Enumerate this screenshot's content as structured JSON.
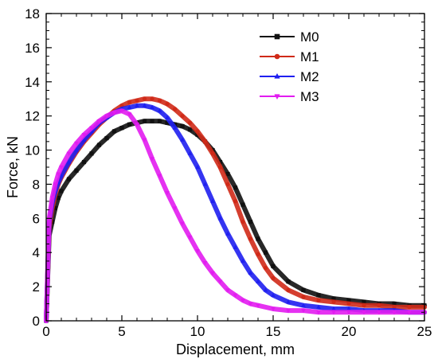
{
  "chart_data": {
    "type": "line",
    "xlabel": "Displacement, mm",
    "ylabel": "Force, kN",
    "xlim": [
      0,
      25
    ],
    "ylim": [
      0,
      18
    ],
    "x_ticks": [
      "0",
      "5",
      "10",
      "15",
      "20",
      "25"
    ],
    "y_ticks": [
      "0",
      "2",
      "4",
      "6",
      "8",
      "10",
      "12",
      "14",
      "16",
      "18"
    ],
    "grid": false,
    "legend_position": "top-right",
    "series": [
      {
        "name": "M0",
        "color": "#111111",
        "marker": "square",
        "x": [
          0,
          0.2,
          0.4,
          0.6,
          0.8,
          1,
          1.5,
          2,
          2.5,
          3,
          3.5,
          4,
          4.5,
          5,
          5.5,
          6,
          6.5,
          7,
          7.5,
          8,
          8.5,
          9,
          9.5,
          10,
          10.5,
          11,
          11.5,
          12,
          12.5,
          13,
          13.5,
          14,
          14.5,
          15,
          16,
          17,
          18,
          19,
          20,
          21,
          22,
          23,
          24,
          25
        ],
        "y": [
          0,
          5.0,
          5.8,
          6.6,
          7.2,
          7.6,
          8.3,
          8.8,
          9.3,
          9.8,
          10.3,
          10.7,
          11.1,
          11.3,
          11.5,
          11.6,
          11.7,
          11.7,
          11.7,
          11.6,
          11.5,
          11.4,
          11.2,
          10.9,
          10.5,
          10.0,
          9.3,
          8.6,
          7.8,
          6.8,
          5.8,
          4.8,
          4.0,
          3.2,
          2.3,
          1.8,
          1.5,
          1.3,
          1.2,
          1.1,
          1.0,
          1.0,
          0.9,
          0.9
        ]
      },
      {
        "name": "M1",
        "color": "#d02a18",
        "marker": "circle",
        "x": [
          0,
          0.2,
          0.4,
          0.6,
          0.8,
          1,
          1.5,
          2,
          2.5,
          3,
          3.5,
          4,
          4.5,
          5,
          5.5,
          6,
          6.5,
          7,
          7.5,
          8,
          8.5,
          9,
          9.5,
          10,
          10.5,
          11,
          11.5,
          12,
          12.5,
          13,
          13.5,
          14,
          14.5,
          15,
          16,
          17,
          18,
          19,
          20,
          21,
          22,
          23,
          24,
          25
        ],
        "y": [
          0,
          5.5,
          6.6,
          7.4,
          8.0,
          8.4,
          9.2,
          9.9,
          10.5,
          11.0,
          11.5,
          11.9,
          12.3,
          12.6,
          12.8,
          12.9,
          13.0,
          13.0,
          12.9,
          12.7,
          12.4,
          12.0,
          11.6,
          11.1,
          10.5,
          9.8,
          9.0,
          8.0,
          7.0,
          5.8,
          4.8,
          3.9,
          3.1,
          2.5,
          1.8,
          1.4,
          1.2,
          1.1,
          1.0,
          0.9,
          0.9,
          0.8,
          0.8,
          0.8
        ]
      },
      {
        "name": "M2",
        "color": "#1f1ff0",
        "marker": "triangle-up",
        "x": [
          0,
          0.2,
          0.4,
          0.6,
          0.8,
          1,
          1.5,
          2,
          2.5,
          3,
          3.5,
          4,
          4.5,
          5,
          5.5,
          6,
          6.5,
          7,
          7.5,
          8,
          8.5,
          9,
          9.5,
          10,
          10.5,
          11,
          11.5,
          12,
          12.5,
          13,
          13.5,
          14,
          14.5,
          15,
          16,
          17,
          18,
          19,
          20,
          21,
          22,
          23,
          24,
          25
        ],
        "y": [
          0,
          5.8,
          6.9,
          7.6,
          8.1,
          8.5,
          9.3,
          10.0,
          10.6,
          11.1,
          11.6,
          11.9,
          12.2,
          12.4,
          12.5,
          12.6,
          12.6,
          12.5,
          12.3,
          11.9,
          11.3,
          10.6,
          9.8,
          9.0,
          8.0,
          7.0,
          6.0,
          5.1,
          4.3,
          3.5,
          2.8,
          2.3,
          1.8,
          1.5,
          1.1,
          0.9,
          0.8,
          0.7,
          0.7,
          0.6,
          0.6,
          0.6,
          0.5,
          0.5
        ]
      },
      {
        "name": "M3",
        "color": "#e21cf0",
        "marker": "triangle-down",
        "x": [
          0,
          0.2,
          0.4,
          0.6,
          0.8,
          1,
          1.5,
          2,
          2.5,
          3,
          3.5,
          4,
          4.5,
          5,
          5.5,
          6,
          6.5,
          7,
          7.5,
          8,
          8.5,
          9,
          9.5,
          10,
          10.5,
          11,
          11.5,
          12,
          12.5,
          13,
          13.5,
          14,
          15,
          16,
          17,
          18,
          19,
          20,
          21,
          22,
          23,
          24,
          25
        ],
        "y": [
          0,
          6.0,
          7.2,
          8.0,
          8.6,
          9.0,
          9.8,
          10.4,
          10.9,
          11.3,
          11.7,
          12.0,
          12.2,
          12.3,
          12.1,
          11.5,
          10.6,
          9.5,
          8.5,
          7.5,
          6.6,
          5.7,
          4.9,
          4.1,
          3.4,
          2.8,
          2.3,
          1.8,
          1.5,
          1.2,
          1.0,
          0.9,
          0.7,
          0.6,
          0.6,
          0.5,
          0.5,
          0.5,
          0.5,
          0.5,
          0.5,
          0.5,
          0.5
        ]
      }
    ]
  }
}
